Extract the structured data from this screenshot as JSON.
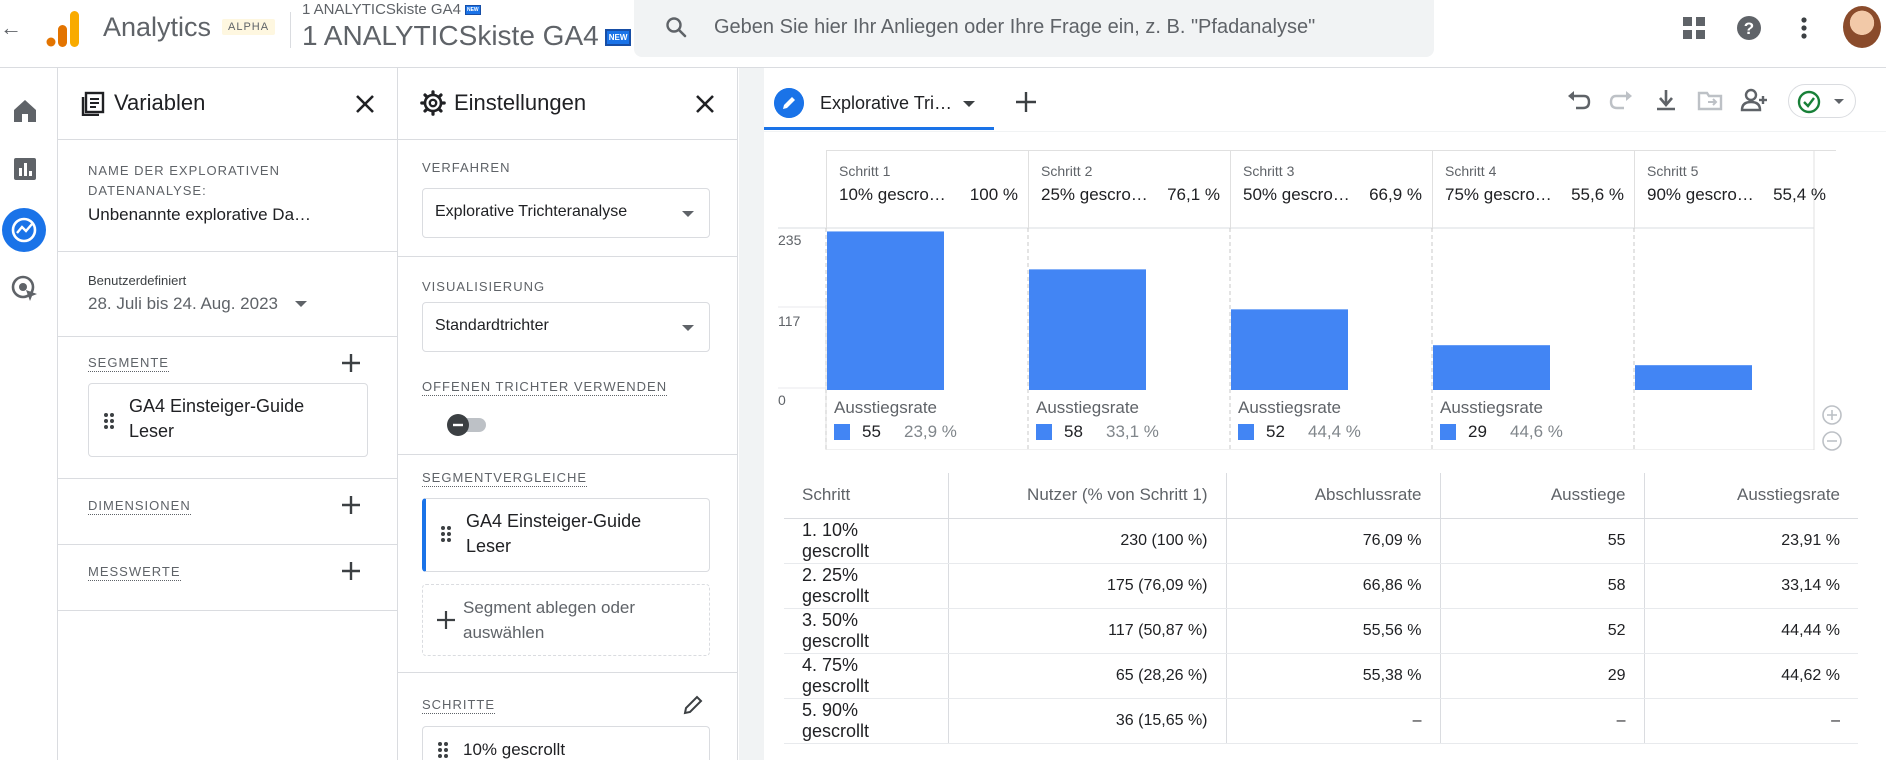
{
  "colors": {
    "accent": "#1a73e8",
    "bar": "#4285f4",
    "logo_orange": "#f9ab00",
    "logo_dark_orange": "#e37400"
  },
  "topbar": {
    "app_name": "Analytics",
    "badge": "ALPHA",
    "property_small": "1 ANALYTICSkiste GA4",
    "property_large": "1 ANALYTICSkiste GA4",
    "new_badge": "NEW",
    "search_placeholder": "Geben Sie hier Ihr Anliegen oder Ihre Frage ein, z. B. \"Pfadanalyse\"",
    "icons": [
      "back-arrow-icon",
      "apps-grid-icon",
      "help-icon",
      "more-vert-icon",
      "avatar"
    ]
  },
  "rail": {
    "icons": [
      "home-icon",
      "reports-icon",
      "explore-icon",
      "advertising-icon"
    ]
  },
  "variables": {
    "title": "Variablen",
    "name_label": "NAME DER EXPLORATIVEN DATENANALYSE:",
    "name_value": "Unbenannte explorative Da…",
    "date_label": "Benutzerdefiniert",
    "date_value": "28. Juli bis 24. Aug. 2023",
    "segments_label": "SEGMENTE",
    "segment_item": "GA4 Einsteiger-Guide Leser",
    "dimensions_label": "DIMENSIONEN",
    "metrics_label": "MESSWERTE"
  },
  "settings": {
    "title": "Einstellungen",
    "technique_label": "VERFAHREN",
    "technique_value": "Explorative Trichteranalyse",
    "visualization_label": "VISUALISIERUNG",
    "visualization_value": "Standardtrichter",
    "open_funnel_label": "OFFENEN TRICHTER VERWENDEN",
    "open_funnel_on": false,
    "segment_compare_label": "SEGMENTVERGLEICHE",
    "segment_compare_item": "GA4 Einsteiger-Guide Leser",
    "drop_segment_text": "Segment ablegen oder auswählen",
    "steps_label": "SCHRITTE",
    "first_step": "10% gescrollt"
  },
  "tabs": {
    "active_label": "Explorative Tri…",
    "toolbar_icons": [
      "undo-icon",
      "redo-icon",
      "download-icon",
      "move-folder-icon",
      "share-user-icon",
      "check-circle-icon"
    ]
  },
  "funnel": {
    "y_ticks": [
      "235",
      "117",
      "0"
    ],
    "dropoff_label": "Ausstiegsrate",
    "steps": [
      {
        "name": "Schritt 1",
        "label": "10% gescro…",
        "pct": "100 %",
        "drop_count": "55",
        "drop_pct": "23,9 %"
      },
      {
        "name": "Schritt 2",
        "label": "25% gescro…",
        "pct": "76,1 %",
        "drop_count": "58",
        "drop_pct": "33,1 %"
      },
      {
        "name": "Schritt 3",
        "label": "50% gescro…",
        "pct": "66,9 %",
        "drop_count": "52",
        "drop_pct": "44,4 %"
      },
      {
        "name": "Schritt 4",
        "label": "75% gescro…",
        "pct": "55,6 %",
        "drop_count": "29",
        "drop_pct": "44,6 %"
      },
      {
        "name": "Schritt 5",
        "label": "90% gescro…",
        "pct": "55,4 %",
        "drop_count": "",
        "drop_pct": ""
      }
    ]
  },
  "chart_data": {
    "type": "bar",
    "categories": [
      "Schritt 1",
      "Schritt 2",
      "Schritt 3",
      "Schritt 4",
      "Schritt 5"
    ],
    "values": [
      230,
      175,
      117,
      65,
      36
    ],
    "ylim": [
      0,
      235
    ],
    "y_ticks": [
      0,
      117,
      235
    ],
    "grid": true
  },
  "table": {
    "headers": [
      "Schritt",
      "Nutzer (% von Schritt 1)",
      "Abschlussrate",
      "Ausstiege",
      "Ausstiegsrate"
    ],
    "rows": [
      [
        "1. 10% gescrollt",
        "230 (100 %)",
        "76,09 %",
        "55",
        "23,91 %"
      ],
      [
        "2. 25% gescrollt",
        "175 (76,09 %)",
        "66,86 %",
        "58",
        "33,14 %"
      ],
      [
        "3. 50% gescrollt",
        "117 (50,87 %)",
        "55,56 %",
        "52",
        "44,44 %"
      ],
      [
        "4. 75% gescrollt",
        "65 (28,26 %)",
        "55,38 %",
        "29",
        "44,62 %"
      ],
      [
        "5. 90% gescrollt",
        "36 (15,65 %)",
        "–",
        "–",
        "–"
      ]
    ]
  }
}
